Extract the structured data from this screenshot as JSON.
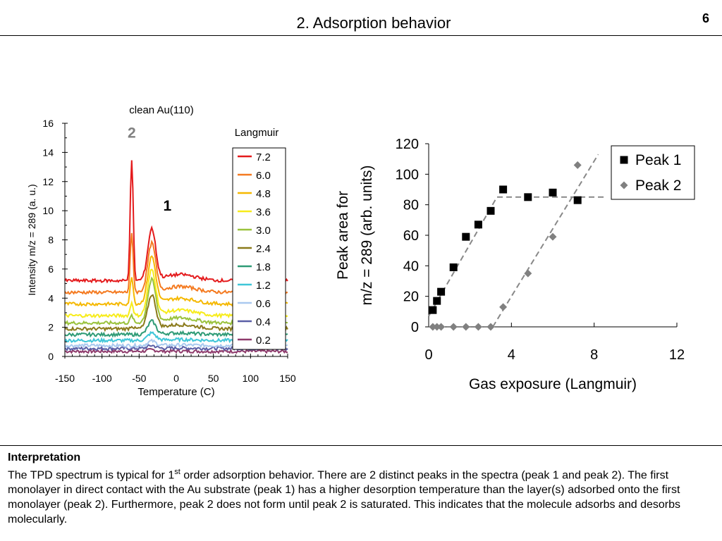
{
  "slide": {
    "title": "2. Adsorption behavior",
    "page_number": "6"
  },
  "interpretation": {
    "heading": "Interpretation",
    "text_before_sup": "The TPD spectrum is typical for 1",
    "sup": "st",
    "text_after_sup": " order adsorption behavior. There are 2 distinct peaks in the spectra (peak 1 and peak 2). The first monolayer in direct contact with the Au substrate (peak 1) has a higher desorption temperature than the layer(s) adsorbed onto the first monolayer (peak 2). Furthermore, peak 2 does not form until peak 2 is saturated. This indicates that the molecule adsorbs and desorbs molecularly."
  },
  "chart_data": [
    {
      "type": "line",
      "title": "clean Au(110)",
      "xlabel": "Temperature (C)",
      "ylabel": "Intensity m/z = 289 (a. u.)",
      "xlim": [
        -150,
        150
      ],
      "ylim": [
        0,
        16
      ],
      "x_ticks": [
        -150,
        -100,
        -50,
        0,
        50,
        100,
        150
      ],
      "y_ticks": [
        0,
        2,
        4,
        6,
        8,
        10,
        12,
        14,
        16
      ],
      "legend_title": "Langmuir",
      "legend_position": "right",
      "grid": false,
      "annotations": [
        {
          "label": "2",
          "x": -60,
          "y": 15.0,
          "color": "#808080"
        },
        {
          "label": "1",
          "x": -12,
          "y": 10.0,
          "color": "#000000"
        }
      ],
      "peaks": {
        "peak2_x": -60,
        "peak1_x": -33
      },
      "series": [
        {
          "name": "7.2",
          "color": "#e41a1c",
          "baseline": 5.2,
          "peak1": 3.5,
          "peak2": 8.3
        },
        {
          "name": "6.0",
          "color": "#f47a20",
          "baseline": 4.4,
          "peak1": 3.3,
          "peak2": 4.0
        },
        {
          "name": "4.8",
          "color": "#f5b800",
          "baseline": 3.6,
          "peak1": 3.2,
          "peak2": 1.9
        },
        {
          "name": "3.6",
          "color": "#f7ec1b",
          "baseline": 2.8,
          "peak1": 3.1,
          "peak2": 0.9
        },
        {
          "name": "3.0",
          "color": "#9ac23c",
          "baseline": 2.3,
          "peak1": 2.9,
          "peak2": 0.5
        },
        {
          "name": "2.4",
          "color": "#8a7a1a",
          "baseline": 1.9,
          "peak1": 2.3,
          "peak2": 0.2
        },
        {
          "name": "1.8",
          "color": "#2f9b76",
          "baseline": 1.5,
          "peak1": 0.9,
          "peak2": 0.0
        },
        {
          "name": "1.2",
          "color": "#3fc6d8",
          "baseline": 1.1,
          "peak1": 0.5,
          "peak2": 0.0
        },
        {
          "name": "0.6",
          "color": "#a9c9ef",
          "baseline": 0.75,
          "peak1": 0.3,
          "peak2": 0.0
        },
        {
          "name": "0.4",
          "color": "#5a5fa6",
          "baseline": 0.55,
          "peak1": 0.2,
          "peak2": 0.0
        },
        {
          "name": "0.2",
          "color": "#8e3a6b",
          "baseline": 0.35,
          "peak1": 0.1,
          "peak2": 0.0
        }
      ]
    },
    {
      "type": "scatter",
      "title": "",
      "xlabel": "Gas exposure (Langmuir)",
      "ylabel_line1": "Peak area for",
      "ylabel_line2": "m/z = 289 (arb. units)",
      "xlim": [
        0,
        12
      ],
      "ylim": [
        0,
        120
      ],
      "x_ticks": [
        0,
        4,
        8,
        12
      ],
      "y_ticks": [
        0,
        20,
        40,
        60,
        80,
        100,
        120
      ],
      "legend_position": "top-right",
      "grid": false,
      "series": [
        {
          "name": "Peak 1",
          "marker": "square",
          "color": "#000000",
          "x": [
            0.2,
            0.4,
            0.6,
            1.2,
            1.8,
            2.4,
            3.0,
            3.6,
            4.8,
            6.0,
            7.2
          ],
          "y": [
            11,
            17,
            23,
            39,
            59,
            67,
            76,
            90,
            85,
            88,
            83
          ]
        },
        {
          "name": "Peak 2",
          "marker": "diamond",
          "color": "#808080",
          "x": [
            0.2,
            0.4,
            0.6,
            1.2,
            1.8,
            2.4,
            3.0,
            3.6,
            4.8,
            6.0,
            7.2
          ],
          "y": [
            0,
            0,
            0,
            0,
            0,
            0,
            0,
            13,
            35,
            59,
            106
          ]
        }
      ],
      "fit_lines": [
        {
          "series": "Peak 1",
          "color": "#888888",
          "points": [
            [
              0,
              7
            ],
            [
              3.3,
              85
            ],
            [
              8.5,
              85
            ]
          ]
        },
        {
          "series": "Peak 2",
          "color": "#888888",
          "points": [
            [
              0,
              0
            ],
            [
              3.1,
              0
            ],
            [
              8.2,
              113
            ]
          ]
        }
      ]
    }
  ]
}
